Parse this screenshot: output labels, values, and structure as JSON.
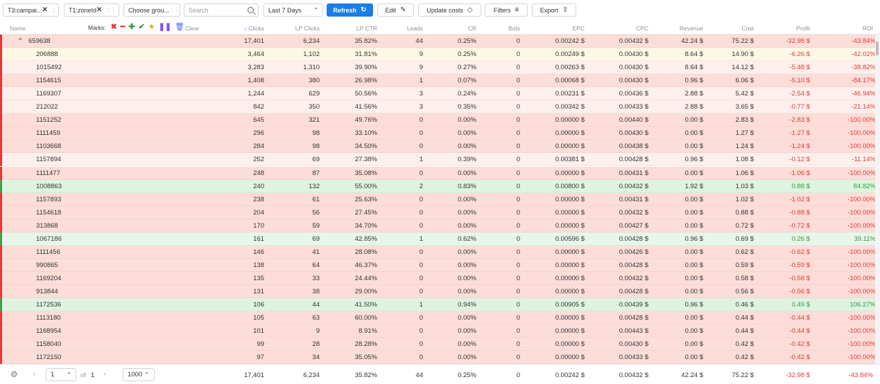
{
  "toolbar": {
    "filter1": "T3:campai...",
    "filter2": "T1:zoneId",
    "group": "Choose grou...",
    "search_placeholder": "Search",
    "range": "Last 7 Days",
    "refresh": "Refresh",
    "edit": "Edit",
    "update_costs": "Update costs",
    "filters": "Filters",
    "export": "Export"
  },
  "header": {
    "name": "Name",
    "marks": "Marks:",
    "clear": "Clear",
    "columns": [
      "Clicks",
      "LP Clicks",
      "LP CTR",
      "Leads",
      "CR",
      "Bots",
      "EPC",
      "CPC",
      "Revenue",
      "Cost",
      "Profit",
      "ROI"
    ]
  },
  "rows": [
    {
      "name": "659638",
      "c": [
        "17,401",
        "6,234",
        "35.82%",
        "44",
        "0.25%",
        "0",
        "0.00242 $",
        "0.00432 $",
        "42.24 $",
        "75.22 $",
        "-32.98 $",
        "-43.84%"
      ],
      "t": "red",
      "group": true
    },
    {
      "name": "206888",
      "c": [
        "3,464",
        "1,102",
        "31.81%",
        "9",
        "0.25%",
        "0",
        "0.00249 $",
        "0.00430 $",
        "8.64 $",
        "14.90 $",
        "-6.26 $",
        "-42.02%"
      ],
      "t": "yellow"
    },
    {
      "name": "1015492",
      "c": [
        "3,283",
        "1,310",
        "39.90%",
        "9",
        "0.27%",
        "0",
        "0.00263 $",
        "0.00430 $",
        "8.64 $",
        "14.12 $",
        "-5.48 $",
        "-38.82%"
      ],
      "t": "red2"
    },
    {
      "name": "1154615",
      "c": [
        "1,408",
        "380",
        "26.98%",
        "1",
        "0.07%",
        "0",
        "0.00068 $",
        "0.00430 $",
        "0.96 $",
        "6.06 $",
        "-5.10 $",
        "-84.17%"
      ],
      "t": "red"
    },
    {
      "name": "1169307",
      "c": [
        "1,244",
        "629",
        "50.56%",
        "3",
        "0.24%",
        "0",
        "0.00231 $",
        "0.00436 $",
        "2.88 $",
        "5.42 $",
        "-2.54 $",
        "-46.94%"
      ],
      "t": "red2"
    },
    {
      "name": "212022",
      "c": [
        "842",
        "350",
        "41.56%",
        "3",
        "0.35%",
        "0",
        "0.00342 $",
        "0.00433 $",
        "2.88 $",
        "3.65 $",
        "-0.77 $",
        "-21.14%"
      ],
      "t": "red2"
    },
    {
      "name": "1151252",
      "c": [
        "645",
        "321",
        "49.76%",
        "0",
        "0.00%",
        "0",
        "0.00000 $",
        "0.00440 $",
        "0.00 $",
        "2.83 $",
        "-2.83 $",
        "-100.00%"
      ],
      "t": "red"
    },
    {
      "name": "1111459",
      "c": [
        "296",
        "98",
        "33.10%",
        "0",
        "0.00%",
        "0",
        "0.00000 $",
        "0.00430 $",
        "0.00 $",
        "1.27 $",
        "-1.27 $",
        "-100.00%"
      ],
      "t": "red"
    },
    {
      "name": "1103668",
      "c": [
        "284",
        "98",
        "34.50%",
        "0",
        "0.00%",
        "0",
        "0.00000 $",
        "0.00438 $",
        "0.00 $",
        "1.24 $",
        "-1.24 $",
        "-100.00%"
      ],
      "t": "red"
    },
    {
      "name": "1157894",
      "c": [
        "252",
        "69",
        "27.38%",
        "1",
        "0.39%",
        "0",
        "0.00381 $",
        "0.00428 $",
        "0.96 $",
        "1.08 $",
        "-0.12 $",
        "-11.14%"
      ],
      "t": "red2"
    },
    {
      "name": "1111477",
      "c": [
        "248",
        "87",
        "35.08%",
        "0",
        "0.00%",
        "0",
        "0.00000 $",
        "0.00431 $",
        "0.00 $",
        "1.06 $",
        "-1.06 $",
        "-100.00%"
      ],
      "t": "red"
    },
    {
      "name": "1008863",
      "c": [
        "240",
        "132",
        "55.00%",
        "2",
        "0.83%",
        "0",
        "0.00800 $",
        "0.00432 $",
        "1.92 $",
        "1.03 $",
        "0.88 $",
        "84.82%"
      ],
      "t": "green"
    },
    {
      "name": "1157893",
      "c": [
        "238",
        "61",
        "25.63%",
        "0",
        "0.00%",
        "0",
        "0.00000 $",
        "0.00431 $",
        "0.00 $",
        "1.02 $",
        "-1.02 $",
        "-100.00%"
      ],
      "t": "red"
    },
    {
      "name": "1154618",
      "c": [
        "204",
        "56",
        "27.45%",
        "0",
        "0.00%",
        "0",
        "0.00000 $",
        "0.00432 $",
        "0.00 $",
        "0.88 $",
        "-0.88 $",
        "-100.00%"
      ],
      "t": "red"
    },
    {
      "name": "313868",
      "c": [
        "170",
        "59",
        "34.70%",
        "0",
        "0.00%",
        "0",
        "0.00000 $",
        "0.00427 $",
        "0.00 $",
        "0.72 $",
        "-0.72 $",
        "-100.00%"
      ],
      "t": "red"
    },
    {
      "name": "1067186",
      "c": [
        "161",
        "69",
        "42.85%",
        "1",
        "0.62%",
        "0",
        "0.00596 $",
        "0.00428 $",
        "0.96 $",
        "0.69 $",
        "0.26 $",
        "39.11%"
      ],
      "t": "green2"
    },
    {
      "name": "1111456",
      "c": [
        "146",
        "41",
        "28.08%",
        "0",
        "0.00%",
        "0",
        "0.00000 $",
        "0.00426 $",
        "0.00 $",
        "0.62 $",
        "-0.62 $",
        "-100.00%"
      ],
      "t": "red"
    },
    {
      "name": "990865",
      "c": [
        "138",
        "64",
        "46.37%",
        "0",
        "0.00%",
        "0",
        "0.00000 $",
        "0.00428 $",
        "0.00 $",
        "0.59 $",
        "-0.59 $",
        "-100.00%"
      ],
      "t": "red"
    },
    {
      "name": "1169204",
      "c": [
        "135",
        "33",
        "24.44%",
        "0",
        "0.00%",
        "0",
        "0.00000 $",
        "0.00432 $",
        "0.00 $",
        "0.58 $",
        "-0.58 $",
        "-100.00%"
      ],
      "t": "red"
    },
    {
      "name": "913844",
      "c": [
        "131",
        "38",
        "29.00%",
        "0",
        "0.00%",
        "0",
        "0.00000 $",
        "0.00428 $",
        "0.00 $",
        "0.56 $",
        "-0.56 $",
        "-100.00%"
      ],
      "t": "red"
    },
    {
      "name": "1172536",
      "c": [
        "106",
        "44",
        "41.50%",
        "1",
        "0.94%",
        "0",
        "0.00905 $",
        "0.00439 $",
        "0.96 $",
        "0.46 $",
        "0.49 $",
        "106.27%"
      ],
      "t": "green"
    },
    {
      "name": "1113180",
      "c": [
        "105",
        "63",
        "60.00%",
        "0",
        "0.00%",
        "0",
        "0.00000 $",
        "0.00428 $",
        "0.00 $",
        "0.44 $",
        "-0.44 $",
        "-100.00%"
      ],
      "t": "red"
    },
    {
      "name": "1168954",
      "c": [
        "101",
        "9",
        "8.91%",
        "0",
        "0.00%",
        "0",
        "0.00000 $",
        "0.00443 $",
        "0.00 $",
        "0.44 $",
        "-0.44 $",
        "-100.00%"
      ],
      "t": "red"
    },
    {
      "name": "1158040",
      "c": [
        "99",
        "28",
        "28.28%",
        "0",
        "0.00%",
        "0",
        "0.00000 $",
        "0.00430 $",
        "0.00 $",
        "0.42 $",
        "-0.42 $",
        "-100.00%"
      ],
      "t": "red"
    },
    {
      "name": "1172150",
      "c": [
        "97",
        "34",
        "35.05%",
        "0",
        "0.00%",
        "0",
        "0.00000 $",
        "0.00433 $",
        "0.00 $",
        "0.42 $",
        "-0.42 $",
        "-100.00%"
      ],
      "t": "red"
    }
  ],
  "footer": {
    "page": "1",
    "of": "of",
    "total_pages": "1",
    "per_page": "1000",
    "totals": [
      "17,401",
      "6,234",
      "35.82%",
      "44",
      "0.25%",
      "0",
      "0.00242 $",
      "0.00432 $",
      "42.24 $",
      "75.22 $",
      "-32.98 $",
      "-43.84%"
    ]
  },
  "colors": {
    "accent": "#1a7ee6",
    "negative": "#e53935",
    "positive": "#2e9e3e"
  }
}
